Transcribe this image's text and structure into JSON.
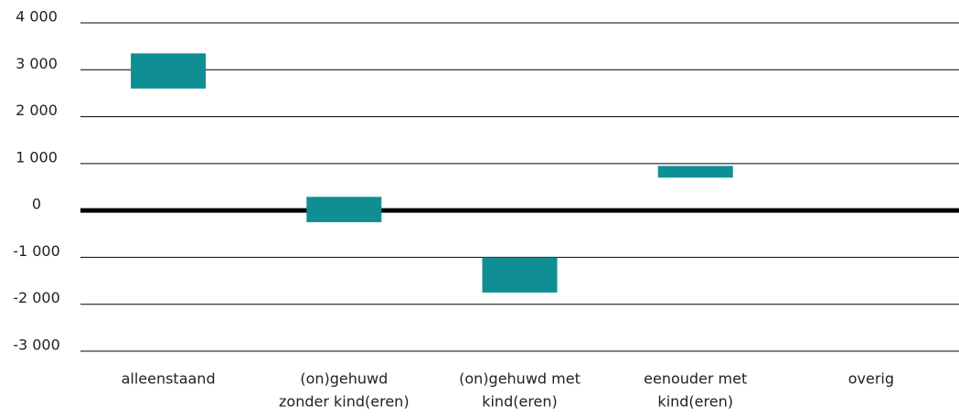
{
  "chart_data": {
    "type": "floating-bar",
    "categories": [
      [
        "alleenstaand"
      ],
      [
        "(on)gehuwd",
        "zonder kind(eren)"
      ],
      [
        "(on)gehuwd met",
        "kind(eren)"
      ],
      [
        "eenouder met",
        "kind(eren)"
      ],
      [
        "overig"
      ]
    ],
    "lows": [
      2600,
      -250,
      -1750,
      700,
      null
    ],
    "highs": [
      3350,
      290,
      -1000,
      950,
      null
    ],
    "color": "#0f8f94",
    "ylim": [
      -3000,
      4000
    ],
    "yticks": [
      {
        "value": 4000,
        "label": "4 000"
      },
      {
        "value": 3000,
        "label": "3 000"
      },
      {
        "value": 2000,
        "label": "2 000"
      },
      {
        "value": 1000,
        "label": "1 000"
      },
      0,
      {
        "value": -1000,
        "label": "-1 000"
      },
      {
        "value": -2000,
        "label": "-2 000"
      },
      {
        "value": -3000,
        "label": "-3 000"
      }
    ],
    "grid": true
  }
}
